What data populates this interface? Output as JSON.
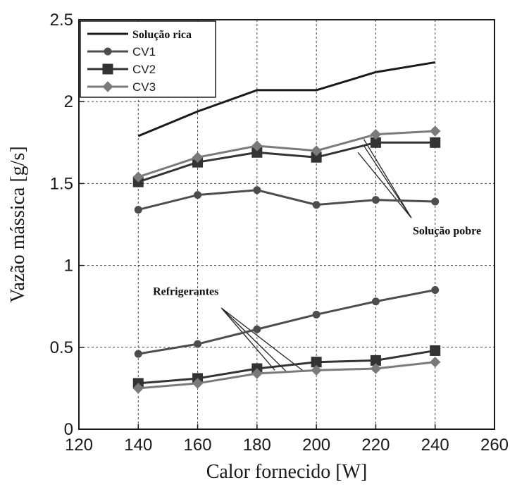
{
  "chart_data": {
    "type": "line",
    "xlabel": "Calor fornecido [W]",
    "ylabel": "Vazão mássica [g/s]",
    "xlim": [
      120,
      260
    ],
    "ylim": [
      0,
      2.5
    ],
    "xticks": [
      120,
      140,
      160,
      180,
      200,
      220,
      240,
      260
    ],
    "yticks": [
      0,
      0.5,
      1,
      1.5,
      2,
      2.5
    ],
    "xtick_labels": [
      "120",
      "140",
      "160",
      "180",
      "200",
      "220",
      "240",
      "260"
    ],
    "ytick_labels": [
      "0",
      "0.5",
      "1",
      "1.5",
      "2",
      "2.5"
    ],
    "grid": true,
    "legend_position": "top-left",
    "legend": [
      {
        "label": "Solução rica",
        "marker": "none",
        "color": "#1a1a1a"
      },
      {
        "label": "CV1",
        "marker": "circle",
        "color": "#4d4d4d"
      },
      {
        "label": "CV2",
        "marker": "square",
        "color": "#333333"
      },
      {
        "label": "CV3",
        "marker": "diamond",
        "color": "#7a7a7a"
      }
    ],
    "x": [
      140,
      160,
      180,
      200,
      220,
      240
    ],
    "series": [
      {
        "name": "Solução rica",
        "group": "rica",
        "marker": "none",
        "color": "#1a1a1a",
        "values": [
          1.79,
          1.94,
          2.07,
          2.07,
          2.18,
          2.24
        ]
      },
      {
        "name": "CV1",
        "group": "pobre",
        "marker": "circle",
        "color": "#4d4d4d",
        "values": [
          1.34,
          1.43,
          1.46,
          1.37,
          1.4,
          1.39
        ]
      },
      {
        "name": "CV2",
        "group": "pobre",
        "marker": "square",
        "color": "#333333",
        "values": [
          1.51,
          1.63,
          1.69,
          1.66,
          1.75,
          1.75
        ]
      },
      {
        "name": "CV3",
        "group": "pobre",
        "marker": "diamond",
        "color": "#7a7a7a",
        "values": [
          1.54,
          1.66,
          1.73,
          1.7,
          1.8,
          1.82
        ]
      },
      {
        "name": "CV1",
        "group": "refrigerante",
        "marker": "circle",
        "color": "#4d4d4d",
        "values": [
          0.46,
          0.52,
          0.61,
          0.7,
          0.78,
          0.85
        ]
      },
      {
        "name": "CV2",
        "group": "refrigerante",
        "marker": "square",
        "color": "#333333",
        "values": [
          0.28,
          0.31,
          0.37,
          0.41,
          0.42,
          0.48
        ]
      },
      {
        "name": "CV3",
        "group": "refrigerante",
        "marker": "diamond",
        "color": "#7a7a7a",
        "values": [
          0.25,
          0.28,
          0.34,
          0.36,
          0.37,
          0.41
        ]
      }
    ],
    "annotations": [
      {
        "text": "Solução pobre",
        "x": 244,
        "y": 1.19,
        "anchor": "middle",
        "pointers": [
          [
            216,
            1.77
          ],
          [
            216,
            1.73
          ],
          [
            214,
            1.69
          ]
        ],
        "base": [
          232,
          1.29
        ]
      },
      {
        "text": "Refrigerantes",
        "x": 156,
        "y": 0.82,
        "anchor": "middle",
        "pointers": [
          [
            186,
            0.36
          ],
          [
            190,
            0.35
          ],
          [
            196,
            0.35
          ]
        ],
        "base": [
          168,
          0.74
        ]
      }
    ]
  }
}
